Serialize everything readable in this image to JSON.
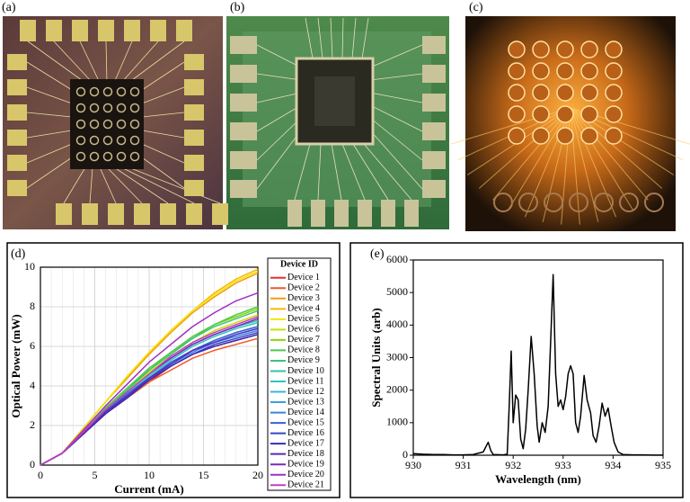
{
  "panel_labels": [
    "(a)",
    "(b)",
    "(c)",
    "(d)",
    "(e)"
  ],
  "chart_data": [
    {
      "type": "line",
      "x_label": "Current (mA)",
      "y_label": "Optical Power (mW)",
      "legend_title": "Device ID",
      "x": [
        0,
        2,
        4,
        6,
        8,
        10,
        12,
        14,
        16,
        18,
        20
      ],
      "xlim": [
        0,
        20
      ],
      "xticks": [
        0,
        5,
        10,
        15,
        20
      ],
      "ylim": [
        0,
        10
      ],
      "yticks": [
        0,
        2,
        4,
        6,
        8,
        10
      ],
      "grid": true,
      "series": [
        {
          "name": "Device 1",
          "color": "#e8312a",
          "values": [
            0,
            0.6,
            1.6,
            2.6,
            3.4,
            4.2,
            5.0,
            5.6,
            6.0,
            6.3,
            6.6
          ]
        },
        {
          "name": "Device 2",
          "color": "#f05a28",
          "values": [
            0,
            0.6,
            1.6,
            2.6,
            3.4,
            4.2,
            4.8,
            5.4,
            5.8,
            6.1,
            6.4
          ]
        },
        {
          "name": "Device 3",
          "color": "#f39c12",
          "values": [
            0,
            0.6,
            1.9,
            3.2,
            4.4,
            5.6,
            6.7,
            7.7,
            8.5,
            9.2,
            9.7
          ]
        },
        {
          "name": "Device 4",
          "color": "#f5b800",
          "values": [
            0,
            0.6,
            1.9,
            3.2,
            4.5,
            5.7,
            6.8,
            7.8,
            8.7,
            9.4,
            9.9
          ]
        },
        {
          "name": "Device 5",
          "color": "#f2e600",
          "values": [
            0,
            0.6,
            1.9,
            3.2,
            4.5,
            5.7,
            6.8,
            7.8,
            8.6,
            9.3,
            9.8
          ]
        },
        {
          "name": "Device 6",
          "color": "#c8e000",
          "values": [
            0,
            0.6,
            1.7,
            2.8,
            3.8,
            4.7,
            5.5,
            6.2,
            6.8,
            7.2,
            7.6
          ]
        },
        {
          "name": "Device 7",
          "color": "#8fd400",
          "values": [
            0,
            0.6,
            1.7,
            2.9,
            3.9,
            4.8,
            5.7,
            6.4,
            7.1,
            7.5,
            7.9
          ]
        },
        {
          "name": "Device 8",
          "color": "#4dc84d",
          "values": [
            0,
            0.6,
            1.7,
            2.9,
            3.9,
            4.9,
            5.7,
            6.5,
            7.1,
            7.6,
            8.0
          ]
        },
        {
          "name": "Device 9",
          "color": "#3cc47a",
          "values": [
            0,
            0.6,
            1.7,
            2.8,
            3.8,
            4.8,
            5.6,
            6.4,
            7.0,
            7.4,
            7.8
          ]
        },
        {
          "name": "Device 10",
          "color": "#34c1a0",
          "values": [
            0,
            0.6,
            1.7,
            2.7,
            3.7,
            4.6,
            5.4,
            6.1,
            6.6,
            7.0,
            7.3
          ]
        },
        {
          "name": "Device 11",
          "color": "#2ec4c4",
          "values": [
            0,
            0.6,
            1.7,
            2.7,
            3.6,
            4.5,
            5.3,
            6.0,
            6.5,
            6.9,
            7.2
          ]
        },
        {
          "name": "Device 12",
          "color": "#35b8d8",
          "values": [
            0,
            0.6,
            1.6,
            2.7,
            3.6,
            4.4,
            5.2,
            5.8,
            6.3,
            6.7,
            7.0
          ]
        },
        {
          "name": "Device 13",
          "color": "#3aa0e0",
          "values": [
            0,
            0.6,
            1.6,
            2.7,
            3.5,
            4.4,
            5.1,
            5.8,
            6.2,
            6.6,
            6.9
          ]
        },
        {
          "name": "Device 14",
          "color": "#3b82e0",
          "values": [
            0,
            0.6,
            1.6,
            2.7,
            3.5,
            4.3,
            5.1,
            5.7,
            6.2,
            6.5,
            6.8
          ]
        },
        {
          "name": "Device 15",
          "color": "#3a60d8",
          "values": [
            0,
            0.6,
            1.6,
            2.7,
            3.6,
            4.4,
            5.2,
            5.8,
            6.3,
            6.7,
            7.0
          ]
        },
        {
          "name": "Device 16",
          "color": "#3545c8",
          "values": [
            0,
            0.6,
            1.6,
            2.6,
            3.5,
            4.3,
            5.0,
            5.6,
            6.1,
            6.4,
            6.7
          ]
        },
        {
          "name": "Device 17",
          "color": "#3a2ab8",
          "values": [
            0,
            0.6,
            1.6,
            2.6,
            3.4,
            4.3,
            5.0,
            5.6,
            6.0,
            6.3,
            6.6
          ]
        },
        {
          "name": "Device 18",
          "color": "#5a2ab8",
          "values": [
            0,
            0.6,
            1.6,
            2.7,
            3.5,
            4.4,
            5.1,
            5.8,
            6.2,
            6.6,
            6.9
          ]
        },
        {
          "name": "Device 19",
          "color": "#7a2ab8",
          "values": [
            0,
            0.6,
            1.7,
            2.8,
            3.7,
            4.6,
            5.4,
            6.1,
            6.6,
            7.0,
            7.4
          ]
        },
        {
          "name": "Device 20",
          "color": "#a030c0",
          "values": [
            0,
            0.6,
            1.8,
            3.0,
            4.1,
            5.2,
            6.1,
            7.0,
            7.7,
            8.3,
            8.7
          ]
        },
        {
          "name": "Device 21",
          "color": "#c040c0",
          "values": [
            0,
            0.6,
            1.7,
            2.8,
            3.7,
            4.6,
            5.5,
            6.2,
            6.7,
            7.1,
            7.5
          ]
        }
      ]
    },
    {
      "type": "line",
      "x_label": "Wavelength (nm)",
      "y_label": "Spectral Units (arb)",
      "color": "#000000",
      "x": [
        930.0,
        930.2,
        930.4,
        930.6,
        930.8,
        931.0,
        931.2,
        931.4,
        931.5,
        931.55,
        931.6,
        931.8,
        931.88,
        931.92,
        931.96,
        932.0,
        932.05,
        932.1,
        932.15,
        932.2,
        932.25,
        932.3,
        932.36,
        932.42,
        932.48,
        932.52,
        932.58,
        932.64,
        932.7,
        932.75,
        932.8,
        932.85,
        932.9,
        932.95,
        933.0,
        933.05,
        933.1,
        933.15,
        933.2,
        933.25,
        933.3,
        933.35,
        933.42,
        933.48,
        933.55,
        933.6,
        933.66,
        933.72,
        933.78,
        933.84,
        933.9,
        933.96,
        934.02,
        934.1,
        934.2,
        934.4,
        934.6,
        934.8,
        935.0
      ],
      "values": [
        50,
        30,
        20,
        20,
        10,
        10,
        20,
        100,
        400,
        150,
        20,
        10,
        30,
        1500,
        3200,
        1000,
        1850,
        1700,
        500,
        200,
        800,
        2000,
        3650,
        2500,
        900,
        400,
        1000,
        700,
        1500,
        3500,
        5550,
        2500,
        1500,
        1700,
        1400,
        1800,
        2500,
        2750,
        2500,
        1000,
        700,
        1200,
        2450,
        1700,
        1300,
        600,
        400,
        900,
        1600,
        1200,
        1450,
        900,
        400,
        100,
        20,
        10,
        10,
        5,
        5
      ],
      "xlim": [
        930,
        935
      ],
      "xticks": [
        930,
        931,
        932,
        933,
        934,
        935
      ],
      "ylim": [
        0,
        6000
      ],
      "yticks": [
        0,
        1000,
        2000,
        3000,
        4000,
        5000,
        6000
      ],
      "grid": false
    }
  ]
}
